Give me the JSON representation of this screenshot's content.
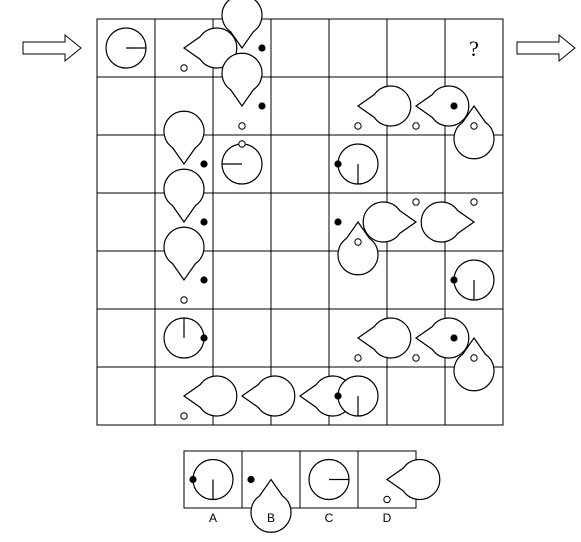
{
  "puzzle": {
    "question_mark": "?",
    "grid": {
      "rows": 7,
      "cols": 7,
      "cells": [
        {
          "r": 0,
          "c": 0,
          "fig": {
            "kind": "line",
            "angle": 0
          }
        },
        {
          "r": 0,
          "c": 1,
          "fig": {
            "kind": "wedge",
            "dir": 0,
            "open": 70,
            "hole": 270
          }
        },
        {
          "r": 0,
          "c": 2,
          "fig": {
            "kind": "wedge",
            "dir": 90,
            "open": 70,
            "hole": 270,
            "dot": 0
          }
        },
        {
          "r": 0,
          "c": 6,
          "fig": {
            "kind": "question"
          }
        },
        {
          "r": 1,
          "c": 2,
          "fig": {
            "kind": "wedge",
            "dir": 90,
            "open": 70,
            "hole": 270,
            "dot": 0
          }
        },
        {
          "r": 1,
          "c": 4,
          "fig": {
            "kind": "wedge",
            "dir": 0,
            "open": 70,
            "hole": 270
          }
        },
        {
          "r": 1,
          "c": 5,
          "fig": {
            "kind": "wedge",
            "dir": 0,
            "open": 70,
            "hole": 270
          }
        },
        {
          "r": 1,
          "c": 6,
          "fig": {
            "kind": "wedge",
            "dir": 270,
            "open": 70,
            "hole": 270,
            "dot": 180
          }
        },
        {
          "r": 2,
          "c": 1,
          "fig": {
            "kind": "wedge",
            "dir": 90,
            "open": 70,
            "hole": 270,
            "dot": 0
          }
        },
        {
          "r": 2,
          "c": 2,
          "fig": {
            "kind": "line",
            "angle": 180,
            "hole": 90
          }
        },
        {
          "r": 2,
          "c": 4,
          "fig": {
            "kind": "line",
            "angle": 270,
            "dot": 180
          }
        },
        {
          "r": 3,
          "c": 1,
          "fig": {
            "kind": "wedge",
            "dir": 90,
            "open": 70,
            "hole": 270,
            "dot": 0
          }
        },
        {
          "r": 3,
          "c": 4,
          "fig": {
            "kind": "wedge",
            "dir": 270,
            "open": 70,
            "hole": 270,
            "dot": 180
          }
        },
        {
          "r": 3,
          "c": 5,
          "fig": {
            "kind": "wedge",
            "dir": 180,
            "open": 70,
            "hole": 90
          }
        },
        {
          "r": 3,
          "c": 6,
          "fig": {
            "kind": "wedge",
            "dir": 180,
            "open": 70,
            "hole": 90
          }
        },
        {
          "r": 4,
          "c": 1,
          "fig": {
            "kind": "wedge",
            "dir": 90,
            "open": 70,
            "hole": 270,
            "dot": 0
          }
        },
        {
          "r": 4,
          "c": 6,
          "fig": {
            "kind": "line",
            "angle": 270,
            "dot": 180
          }
        },
        {
          "r": 5,
          "c": 1,
          "fig": {
            "kind": "line",
            "angle": 90,
            "dot": 0
          }
        },
        {
          "r": 5,
          "c": 4,
          "fig": {
            "kind": "wedge",
            "dir": 0,
            "open": 70,
            "hole": 270
          }
        },
        {
          "r": 5,
          "c": 5,
          "fig": {
            "kind": "wedge",
            "dir": 0,
            "open": 70,
            "hole": 270
          }
        },
        {
          "r": 5,
          "c": 6,
          "fig": {
            "kind": "wedge",
            "dir": 270,
            "open": 70,
            "hole": 270,
            "dot": 180
          }
        },
        {
          "r": 6,
          "c": 1,
          "fig": {
            "kind": "wedge",
            "dir": 0,
            "open": 70,
            "hole": 270
          }
        },
        {
          "r": 6,
          "c": 2,
          "fig": {
            "kind": "wedge",
            "dir": 0,
            "open": 70
          }
        },
        {
          "r": 6,
          "c": 3,
          "fig": {
            "kind": "wedge",
            "dir": 0,
            "open": 70
          }
        },
        {
          "r": 6,
          "c": 4,
          "fig": {
            "kind": "line",
            "angle": 270,
            "dot": 180
          }
        }
      ]
    },
    "options": [
      {
        "label": "A",
        "fig": {
          "kind": "line",
          "angle": 270,
          "dot": 180
        }
      },
      {
        "label": "B",
        "fig": {
          "kind": "wedge",
          "dir": 270,
          "open": 70,
          "dot": 180
        }
      },
      {
        "label": "C",
        "fig": {
          "kind": "line",
          "angle": 0
        }
      },
      {
        "label": "D",
        "fig": {
          "kind": "wedge",
          "dir": 0,
          "open": 70,
          "hole": 270
        }
      }
    ],
    "arrows": [
      {
        "side": "left",
        "icon": "arrow-right-icon"
      },
      {
        "side": "right",
        "icon": "arrow-right-icon"
      }
    ]
  }
}
